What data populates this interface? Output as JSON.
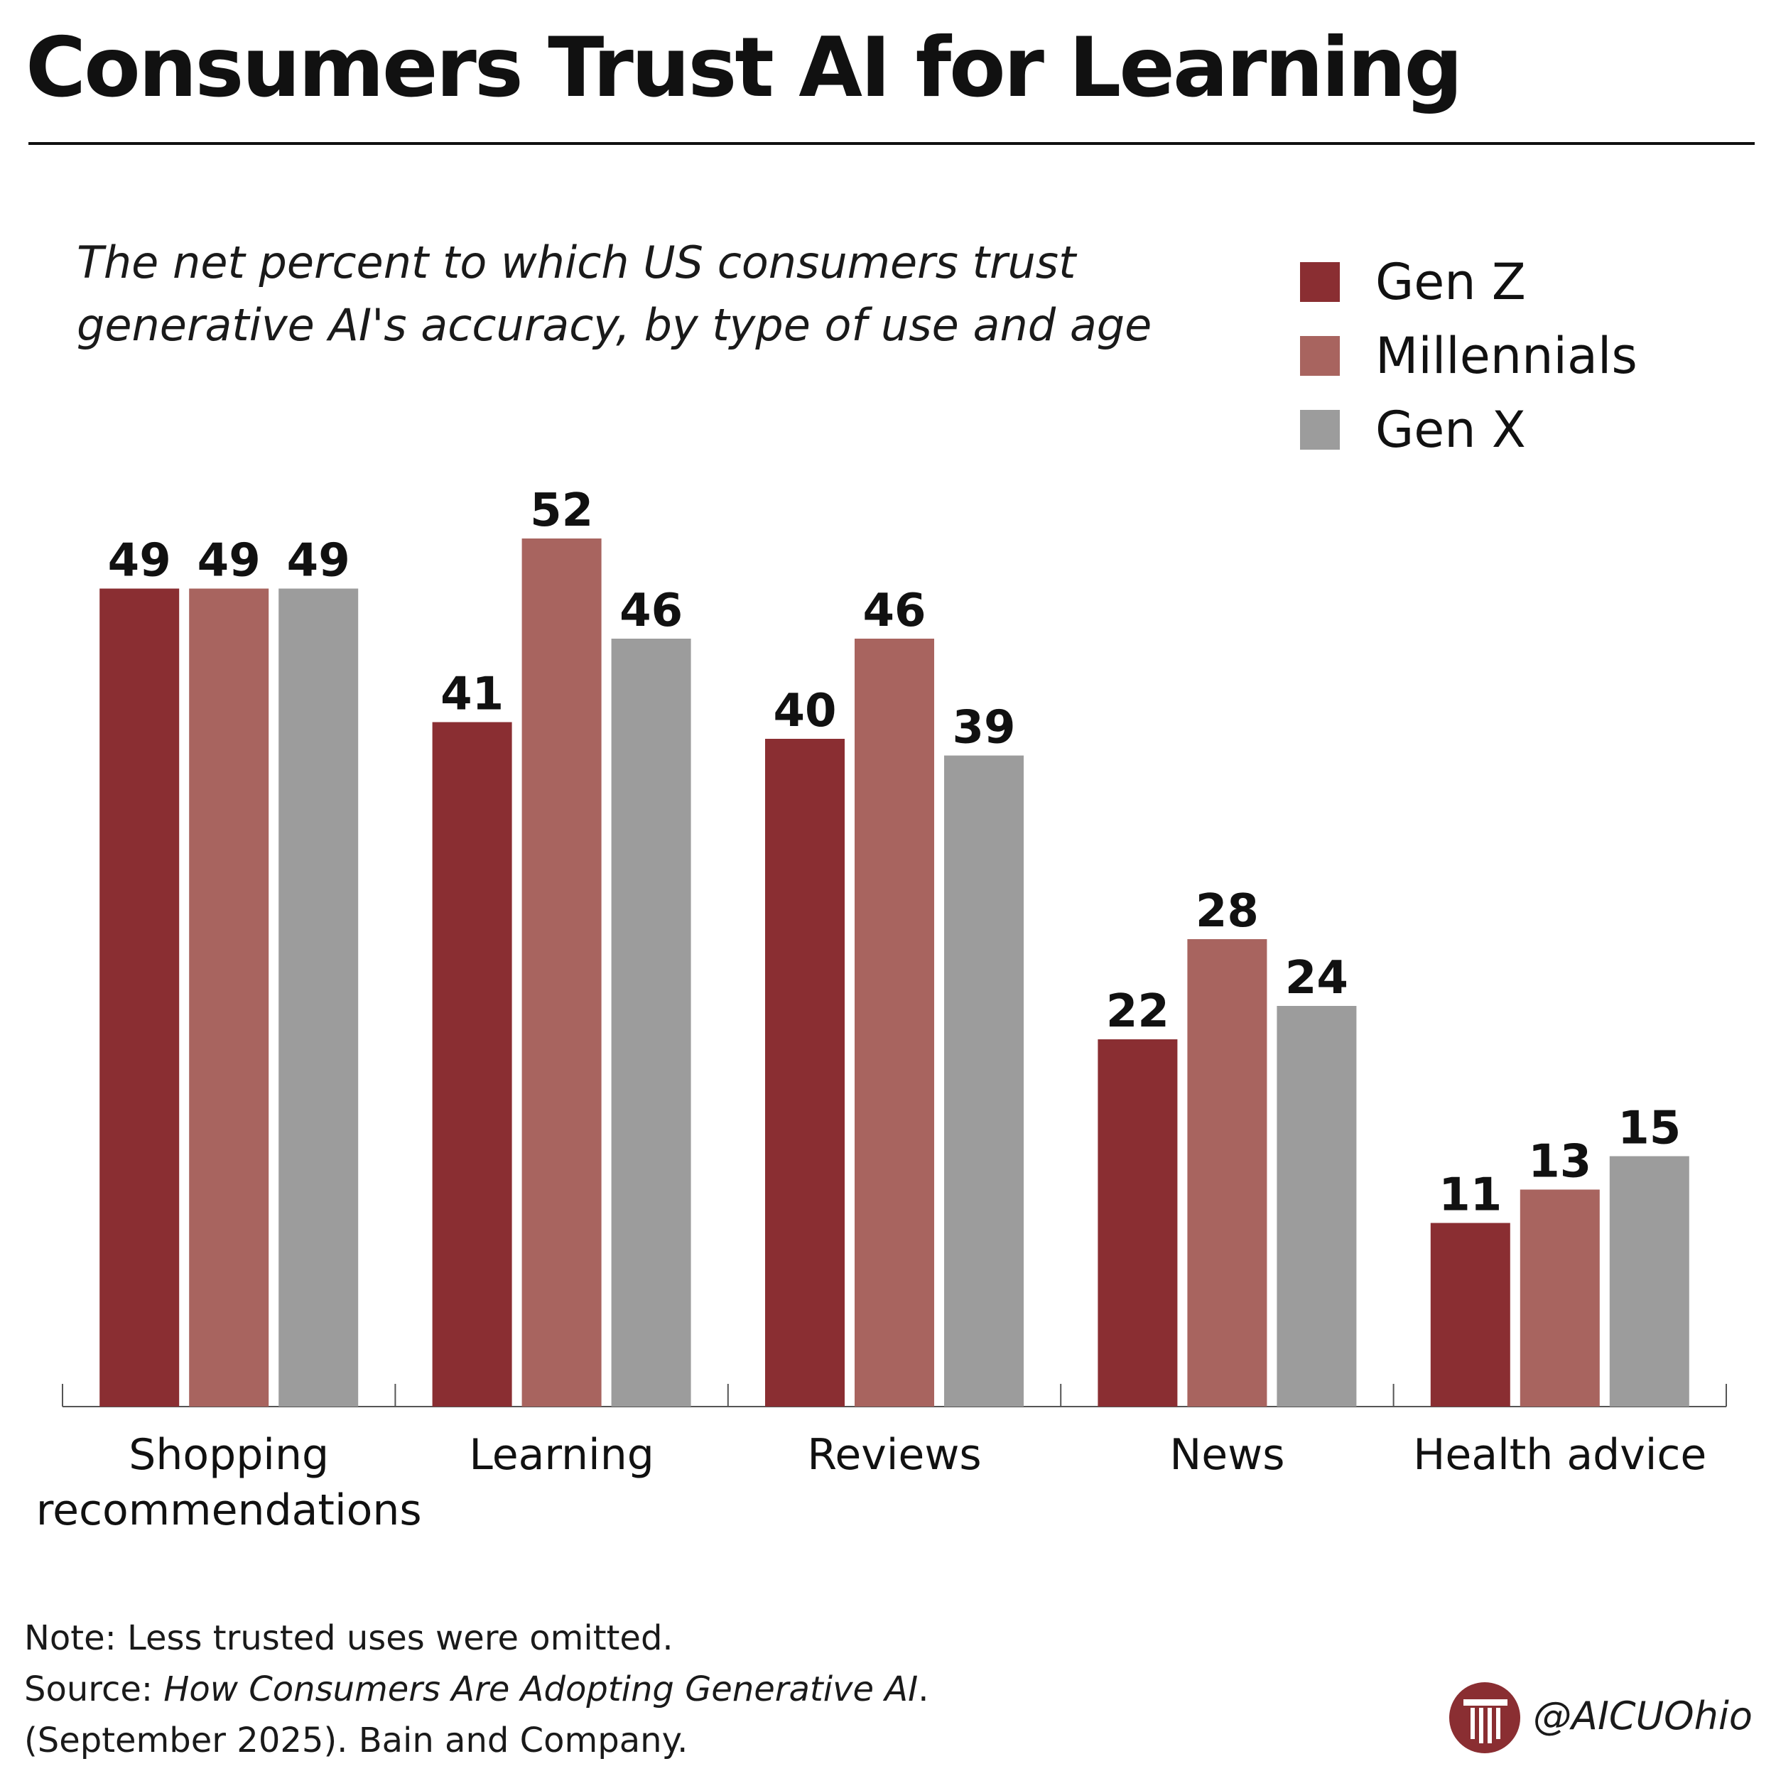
{
  "header": {
    "title": "Consumers Trust AI for Learning"
  },
  "chart_data": {
    "type": "bar",
    "title": "Consumers Trust AI for Learning",
    "subtitle": [
      "The net percent to which US consumers trust",
      "generative AI's accuracy, by type of use and age"
    ],
    "categories": [
      [
        "Shopping",
        "recommendations"
      ],
      [
        "Learning"
      ],
      [
        "Reviews"
      ],
      [
        "News"
      ],
      [
        "Health advice"
      ]
    ],
    "series": [
      {
        "name": "Gen Z",
        "color": "#8a2e32",
        "values": [
          49,
          41,
          40,
          22,
          11
        ]
      },
      {
        "name": "Millennials",
        "color": "#a8645f",
        "values": [
          49,
          52,
          46,
          28,
          13
        ]
      },
      {
        "name": "Gen X",
        "color": "#9c9c9c",
        "values": [
          49,
          46,
          39,
          24,
          15
        ]
      }
    ],
    "ylim": [
      0,
      60
    ],
    "grid": false,
    "legend_position": "top-right",
    "data_labels": true
  },
  "footer": {
    "note": "Note: Less trusted uses were omitted.",
    "source_prefix": "Source: ",
    "source_title": "How Consumers Are Adopting Generative AI",
    "source_suffix": ".",
    "source_line2": "(September 2025). Bain and Company."
  },
  "brand": {
    "handle": "@AICUOhio",
    "color": "#8a2e32"
  }
}
